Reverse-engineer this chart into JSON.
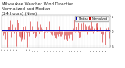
{
  "title_line1": "Milwaukee Weather Wind Direction",
  "title_line2": "Normalized and Median",
  "title_line3": "(24 Hours) (New)",
  "title_fontsize": 3.8,
  "title_color": "#222222",
  "background_color": "#ffffff",
  "plot_bg_color": "#ffffff",
  "grid_color": "#bbbbbb",
  "bar_color": "#cc0000",
  "median_color": "#0000bb",
  "median_value": 0.35,
  "ylim": [
    -5.5,
    5.5
  ],
  "yticks": [
    -5,
    0,
    5
  ],
  "ytick_labels": [
    "-5",
    "0",
    "5"
  ],
  "n_points": 144,
  "legend_labels": [
    "Median",
    "Normalized"
  ],
  "legend_colors": [
    "#0000bb",
    "#cc0000"
  ],
  "n_xticks": 36,
  "bar_lw": 0.4
}
